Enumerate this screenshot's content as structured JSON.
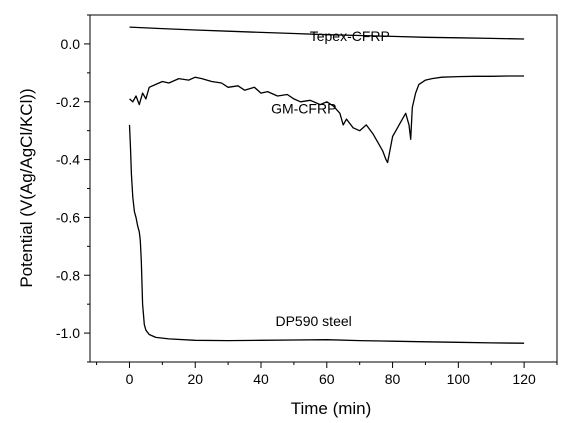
{
  "chart_data": {
    "type": "line",
    "title": "",
    "xlabel": "Time (min)",
    "ylabel": "Potential (V(Ag/AgCl/KCl))",
    "xlim": [
      -12,
      130
    ],
    "ylim": [
      -1.1,
      0.1
    ],
    "x_ticks": [
      0,
      20,
      40,
      60,
      80,
      100,
      120
    ],
    "y_ticks": [
      0.0,
      -0.2,
      -0.4,
      -0.6,
      -0.8,
      -1.0
    ],
    "x_tick_labels": [
      "0",
      "20",
      "40",
      "60",
      "80",
      "100",
      "120"
    ],
    "y_tick_labels": [
      "0.0",
      "-0.2",
      "-0.4",
      "-0.6",
      "-0.8",
      "-1.0"
    ],
    "grid": false,
    "legend": "none",
    "series": [
      {
        "name": "Tepex-CFRP",
        "color": "#000000",
        "x": [
          0,
          10,
          20,
          30,
          40,
          50,
          60,
          70,
          80,
          90,
          100,
          110,
          120
        ],
        "y": [
          0.058,
          0.053,
          0.048,
          0.044,
          0.04,
          0.036,
          0.032,
          0.029,
          0.026,
          0.023,
          0.021,
          0.019,
          0.017
        ]
      },
      {
        "name": "GM-CFRP",
        "color": "#000000",
        "x": [
          0,
          1,
          2,
          3,
          4,
          5,
          6,
          8,
          10,
          12,
          15,
          18,
          20,
          22,
          25,
          28,
          30,
          33,
          35,
          38,
          40,
          42,
          45,
          48,
          50,
          52,
          55,
          58,
          60,
          62,
          64,
          65,
          66,
          68,
          70,
          72,
          74,
          75,
          76,
          77,
          78,
          78.5,
          79,
          80,
          81,
          82,
          83,
          84,
          85,
          85.5,
          86,
          87,
          88,
          90,
          92,
          95,
          100,
          105,
          110,
          115,
          120
        ],
        "y": [
          -0.19,
          -0.2,
          -0.18,
          -0.21,
          -0.17,
          -0.19,
          -0.15,
          -0.14,
          -0.13,
          -0.135,
          -0.12,
          -0.125,
          -0.115,
          -0.12,
          -0.13,
          -0.135,
          -0.15,
          -0.145,
          -0.16,
          -0.15,
          -0.17,
          -0.165,
          -0.18,
          -0.175,
          -0.19,
          -0.2,
          -0.195,
          -0.21,
          -0.2,
          -0.215,
          -0.24,
          -0.28,
          -0.26,
          -0.29,
          -0.3,
          -0.28,
          -0.31,
          -0.33,
          -0.35,
          -0.37,
          -0.4,
          -0.41,
          -0.38,
          -0.32,
          -0.3,
          -0.28,
          -0.26,
          -0.24,
          -0.28,
          -0.33,
          -0.22,
          -0.17,
          -0.14,
          -0.125,
          -0.12,
          -0.115,
          -0.113,
          -0.112,
          -0.112,
          -0.111,
          -0.111
        ]
      },
      {
        "name": "DP590 steel",
        "color": "#000000",
        "x": [
          0,
          0.3,
          0.6,
          1.0,
          1.5,
          2.0,
          2.5,
          3.0,
          3.3,
          3.6,
          4.0,
          4.5,
          5.0,
          6.0,
          8.0,
          12,
          20,
          30,
          40,
          50,
          60,
          70,
          80,
          90,
          100,
          110,
          120
        ],
        "y": [
          -0.28,
          -0.36,
          -0.45,
          -0.53,
          -0.58,
          -0.6,
          -0.63,
          -0.65,
          -0.68,
          -0.75,
          -0.9,
          -0.97,
          -0.99,
          -1.005,
          -1.015,
          -1.02,
          -1.025,
          -1.026,
          -1.025,
          -1.024,
          -1.023,
          -1.026,
          -1.028,
          -1.03,
          -1.032,
          -1.034,
          -1.035
        ]
      }
    ],
    "annotations": [
      {
        "text": "Tepex-CFRP",
        "x": 67,
        "y": 0.01
      },
      {
        "text": "GM-CFRP",
        "x": 53,
        "y": -0.24
      },
      {
        "text": "DP590 steel",
        "x": 56,
        "y": -0.975
      }
    ]
  }
}
